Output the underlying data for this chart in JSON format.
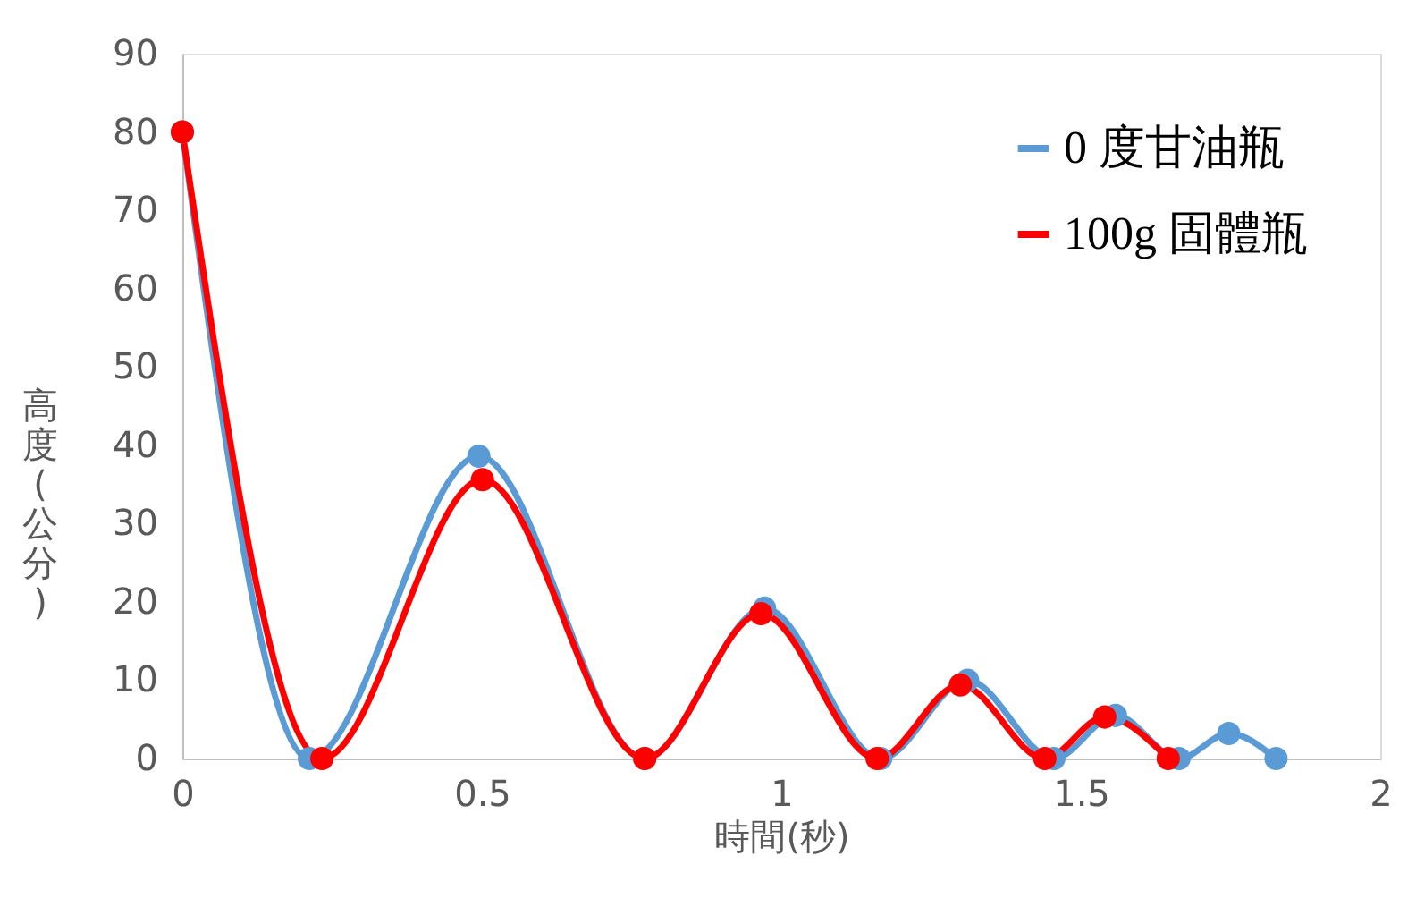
{
  "chart_data": {
    "type": "line",
    "xlabel": "時間(秒)",
    "ylabel": "高度(公分)",
    "xlim": [
      0,
      2
    ],
    "xticks": [
      0,
      0.5,
      1,
      1.5,
      2
    ],
    "ylim": [
      0,
      90
    ],
    "yticks": [
      0,
      10,
      20,
      30,
      40,
      50,
      60,
      70,
      80,
      90
    ],
    "grid": false,
    "legend": "top right",
    "marker": "circle",
    "line_style": "solid",
    "series": [
      {
        "name": "0 度甘油瓶",
        "color": "#5b9bd5",
        "x": [
          0,
          0.212,
          0.495,
          0.772,
          0.972,
          1.166,
          1.311,
          1.455,
          1.558,
          1.664,
          1.747,
          1.826
        ],
        "values": [
          80,
          0,
          38.6,
          0,
          19.2,
          0,
          10,
          0,
          5.5,
          0,
          3.2,
          0
        ]
      },
      {
        "name": "100g 固體瓶",
        "color": "#ff0000",
        "x": [
          0,
          0.233,
          0.501,
          0.772,
          0.966,
          1.16,
          1.299,
          1.44,
          1.54,
          1.646
        ],
        "values": [
          80,
          0,
          35.6,
          0,
          18.5,
          0,
          9.4,
          0,
          5.3,
          0
        ]
      }
    ]
  }
}
